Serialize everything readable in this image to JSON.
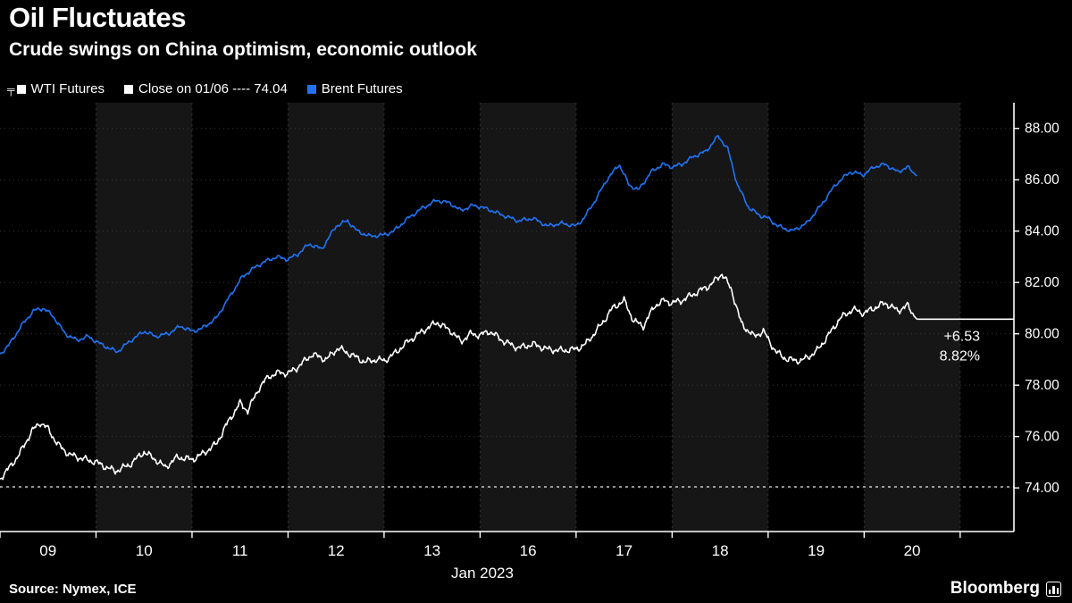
{
  "header": {
    "title": "Oil Fluctuates",
    "subtitle": "Crude swings on China optimism, economic outlook"
  },
  "legend": {
    "key_glyph": "╤",
    "items": [
      {
        "label": "WTI Futures",
        "color": "#ffffff"
      },
      {
        "label": "Close on 01/06 ---- 74.04",
        "color": "#ffffff"
      },
      {
        "label": "Brent Futures",
        "color": "#2173f2"
      }
    ]
  },
  "footer": {
    "source": "Source: Nymex, ICE",
    "brand": "Bloomberg"
  },
  "chart_data": {
    "type": "line",
    "title": "Oil Fluctuates",
    "subtitle": "Crude swings on China optimism, economic outlook",
    "x_axis": {
      "label": "Jan 2023",
      "day_labels": [
        "09",
        "10",
        "11",
        "12",
        "13",
        "16",
        "17",
        "18",
        "19",
        "20"
      ]
    },
    "y_axis": {
      "ticks": [
        "74.00",
        "76.00",
        "78.00",
        "80.00",
        "82.00",
        "84.00",
        "86.00",
        "88.00"
      ],
      "range": [
        72.3,
        89.0
      ]
    },
    "reference_line": {
      "label": "Close on 01/06",
      "value": 74.04,
      "color": "#e8e8e8"
    },
    "last_price": {
      "value": 80.57,
      "change_label": "+6.53",
      "pct_label": "8.82%"
    },
    "layout": {
      "x_range": [
        0,
        10.56
      ],
      "band_light": "#161616",
      "band_dark": "#000000",
      "grid_color": "#3a3a3a",
      "vline_color": "#323232",
      "axis_color": "#ffffff",
      "legend_position": "top",
      "grid": true
    },
    "series": [
      {
        "name": "WTI Futures",
        "color": "#ffffff",
        "noise_amp": 0.17,
        "seed": 3.7,
        "points": [
          [
            0.0,
            74.35
          ],
          [
            0.1,
            74.8
          ],
          [
            0.2,
            75.3
          ],
          [
            0.33,
            76.2
          ],
          [
            0.42,
            76.55
          ],
          [
            0.5,
            76.3
          ],
          [
            0.6,
            75.7
          ],
          [
            0.72,
            75.3
          ],
          [
            0.85,
            75.15
          ],
          [
            1.0,
            75.0
          ],
          [
            1.08,
            74.85
          ],
          [
            1.2,
            74.65
          ],
          [
            1.35,
            74.9
          ],
          [
            1.5,
            75.4
          ],
          [
            1.62,
            75.1
          ],
          [
            1.72,
            74.8
          ],
          [
            1.85,
            75.2
          ],
          [
            2.0,
            75.1
          ],
          [
            2.1,
            75.3
          ],
          [
            2.25,
            75.7
          ],
          [
            2.38,
            76.6
          ],
          [
            2.5,
            77.3
          ],
          [
            2.58,
            77.0
          ],
          [
            2.7,
            77.9
          ],
          [
            2.8,
            78.35
          ],
          [
            2.92,
            78.5
          ],
          [
            3.0,
            78.45
          ],
          [
            3.1,
            78.7
          ],
          [
            3.25,
            79.2
          ],
          [
            3.4,
            79.0
          ],
          [
            3.52,
            79.45
          ],
          [
            3.65,
            79.2
          ],
          [
            3.8,
            78.9
          ],
          [
            3.92,
            79.0
          ],
          [
            4.0,
            78.95
          ],
          [
            4.1,
            79.2
          ],
          [
            4.25,
            79.7
          ],
          [
            4.4,
            80.1
          ],
          [
            4.55,
            80.45
          ],
          [
            4.7,
            80.1
          ],
          [
            4.8,
            79.7
          ],
          [
            4.9,
            80.0
          ],
          [
            5.0,
            79.95
          ],
          [
            5.1,
            80.1
          ],
          [
            5.25,
            79.7
          ],
          [
            5.4,
            79.45
          ],
          [
            5.55,
            79.6
          ],
          [
            5.7,
            79.4
          ],
          [
            5.85,
            79.35
          ],
          [
            6.0,
            79.4
          ],
          [
            6.1,
            79.6
          ],
          [
            6.25,
            80.3
          ],
          [
            6.38,
            81.0
          ],
          [
            6.5,
            81.3
          ],
          [
            6.6,
            80.5
          ],
          [
            6.7,
            80.3
          ],
          [
            6.82,
            81.1
          ],
          [
            6.92,
            81.3
          ],
          [
            7.0,
            81.2
          ],
          [
            7.1,
            81.3
          ],
          [
            7.25,
            81.6
          ],
          [
            7.4,
            81.9
          ],
          [
            7.52,
            82.35
          ],
          [
            7.62,
            81.7
          ],
          [
            7.72,
            80.4
          ],
          [
            7.85,
            79.9
          ],
          [
            7.95,
            80.1
          ],
          [
            8.0,
            79.8
          ],
          [
            8.08,
            79.3
          ],
          [
            8.2,
            79.0
          ],
          [
            8.35,
            78.95
          ],
          [
            8.5,
            79.3
          ],
          [
            8.62,
            79.9
          ],
          [
            8.75,
            80.6
          ],
          [
            8.88,
            80.95
          ],
          [
            9.0,
            80.8
          ],
          [
            9.1,
            81.0
          ],
          [
            9.22,
            81.2
          ],
          [
            9.35,
            80.9
          ],
          [
            9.45,
            81.1
          ],
          [
            9.55,
            80.57
          ]
        ]
      },
      {
        "name": "Brent Futures",
        "color": "#2173f2",
        "noise_amp": 0.1,
        "seed": 9.2,
        "points": [
          [
            0.0,
            79.2
          ],
          [
            0.1,
            79.6
          ],
          [
            0.22,
            80.3
          ],
          [
            0.35,
            80.9
          ],
          [
            0.45,
            81.0
          ],
          [
            0.55,
            80.7
          ],
          [
            0.68,
            80.0
          ],
          [
            0.8,
            79.75
          ],
          [
            0.92,
            79.9
          ],
          [
            1.0,
            79.7
          ],
          [
            1.1,
            79.5
          ],
          [
            1.22,
            79.3
          ],
          [
            1.35,
            79.7
          ],
          [
            1.5,
            80.1
          ],
          [
            1.62,
            79.9
          ],
          [
            1.75,
            80.0
          ],
          [
            1.88,
            80.3
          ],
          [
            2.0,
            80.1
          ],
          [
            2.1,
            80.2
          ],
          [
            2.25,
            80.6
          ],
          [
            2.4,
            81.5
          ],
          [
            2.52,
            82.2
          ],
          [
            2.62,
            82.5
          ],
          [
            2.75,
            82.8
          ],
          [
            2.88,
            83.0
          ],
          [
            3.0,
            82.9
          ],
          [
            3.1,
            83.1
          ],
          [
            3.22,
            83.5
          ],
          [
            3.35,
            83.3
          ],
          [
            3.5,
            84.2
          ],
          [
            3.62,
            84.4
          ],
          [
            3.72,
            84.0
          ],
          [
            3.85,
            83.8
          ],
          [
            4.0,
            83.85
          ],
          [
            4.1,
            84.0
          ],
          [
            4.25,
            84.5
          ],
          [
            4.4,
            84.9
          ],
          [
            4.55,
            85.2
          ],
          [
            4.68,
            85.1
          ],
          [
            4.8,
            84.8
          ],
          [
            4.92,
            85.0
          ],
          [
            5.0,
            84.95
          ],
          [
            5.12,
            84.8
          ],
          [
            5.25,
            84.6
          ],
          [
            5.4,
            84.4
          ],
          [
            5.55,
            84.5
          ],
          [
            5.7,
            84.2
          ],
          [
            5.85,
            84.3
          ],
          [
            6.0,
            84.2
          ],
          [
            6.08,
            84.5
          ],
          [
            6.2,
            85.2
          ],
          [
            6.32,
            86.0
          ],
          [
            6.45,
            86.6
          ],
          [
            6.55,
            85.8
          ],
          [
            6.65,
            85.6
          ],
          [
            6.78,
            86.3
          ],
          [
            6.9,
            86.6
          ],
          [
            7.0,
            86.5
          ],
          [
            7.1,
            86.6
          ],
          [
            7.22,
            86.9
          ],
          [
            7.35,
            87.1
          ],
          [
            7.48,
            87.7
          ],
          [
            7.58,
            87.2
          ],
          [
            7.68,
            85.8
          ],
          [
            7.8,
            84.9
          ],
          [
            7.92,
            84.6
          ],
          [
            8.0,
            84.5
          ],
          [
            8.1,
            84.2
          ],
          [
            8.25,
            84.0
          ],
          [
            8.4,
            84.3
          ],
          [
            8.55,
            85.0
          ],
          [
            8.7,
            85.8
          ],
          [
            8.85,
            86.3
          ],
          [
            9.0,
            86.2
          ],
          [
            9.1,
            86.5
          ],
          [
            9.22,
            86.6
          ],
          [
            9.35,
            86.3
          ],
          [
            9.45,
            86.5
          ],
          [
            9.55,
            86.15
          ]
        ]
      }
    ]
  }
}
